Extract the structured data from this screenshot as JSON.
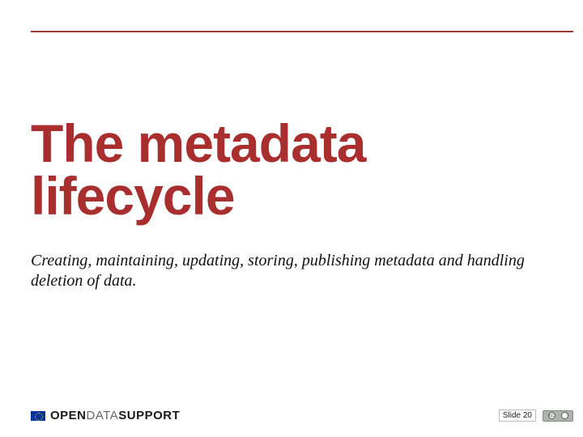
{
  "title": "The metadata lifecycle",
  "subtitle": "Creating, maintaining, updating, storing, publishing metadata and handling deletion of data.",
  "brand": {
    "open": "OPEN",
    "data": "DATA",
    "support": "SUPPORT"
  },
  "footer": {
    "slide_label": "Slide 20"
  },
  "colors": {
    "accent": "#a92f2f",
    "rule": "#a23939",
    "text": "#111111",
    "background": "#ffffff"
  }
}
